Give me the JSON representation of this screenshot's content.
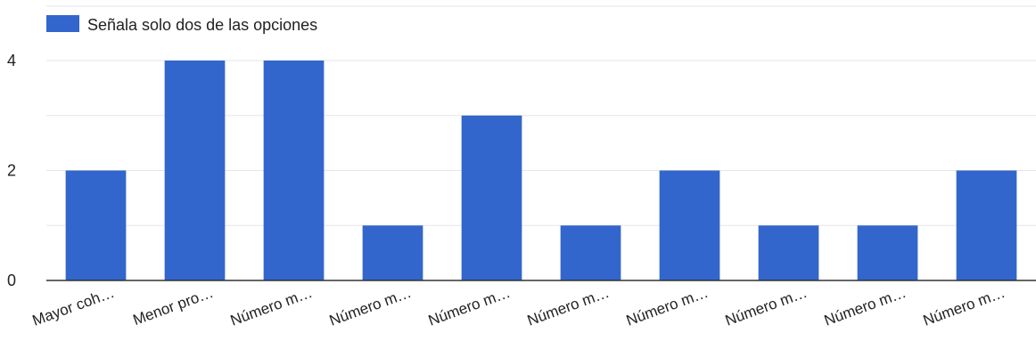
{
  "chart_data": {
    "type": "bar",
    "categories": [
      "Mayor coh…",
      "Menor pro…",
      "Número m…",
      "Número m…",
      "Número m…",
      "Número m…",
      "Número m…",
      "Número m…",
      "Número m…",
      "Número m…"
    ],
    "series": [
      {
        "name": "Señala solo dos de las opciones",
        "values": [
          2,
          4,
          4,
          1,
          3,
          1,
          2,
          1,
          1,
          2
        ]
      }
    ],
    "ylim": [
      0,
      4
    ],
    "yticks": [
      0,
      2,
      4
    ],
    "minor_grid": [
      1,
      3
    ],
    "grid": true,
    "legend_position": "top-left",
    "colors": {
      "bar": "#3366cc",
      "grid": "#e5e5e5",
      "baseline": "#333333",
      "text": "#222222"
    }
  }
}
